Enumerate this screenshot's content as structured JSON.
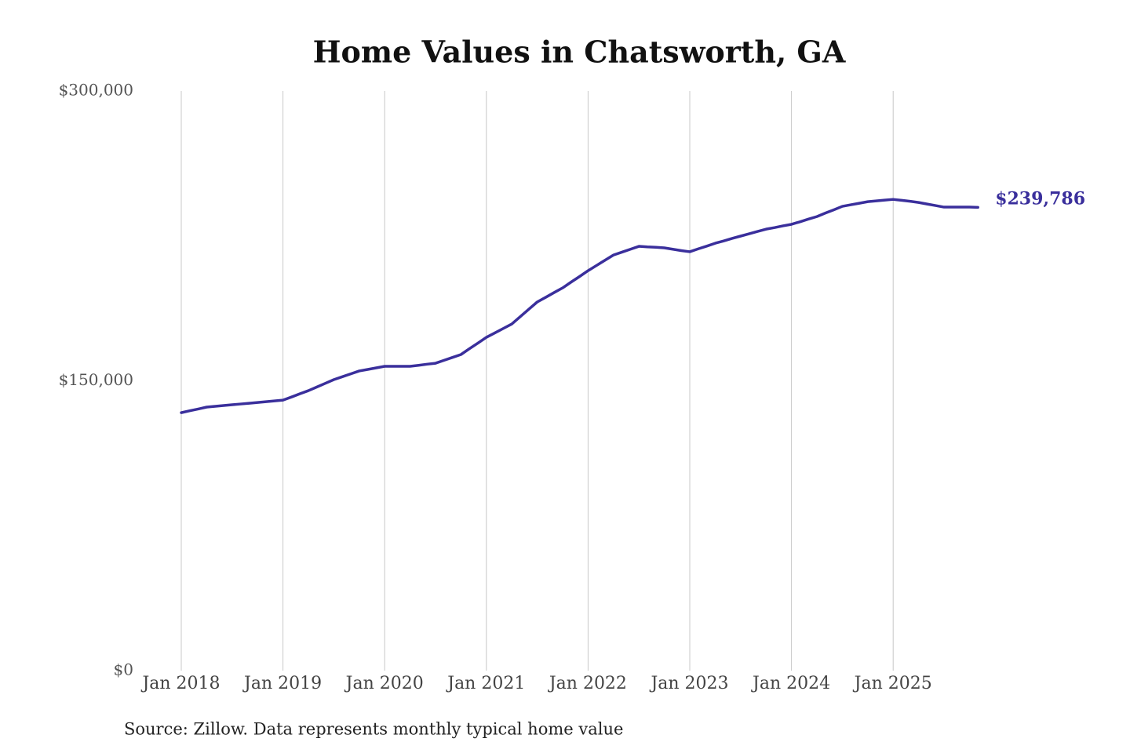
{
  "chart_data": {
    "type": "line",
    "title": "Home Values in Chatsworth, GA",
    "caption": "Source: Zillow. Data represents monthly typical home value",
    "color": "#3a2f9c",
    "xgrid": true,
    "ylim": [
      0,
      300000
    ],
    "yticks": [
      {
        "value": 0,
        "label": "$0"
      },
      {
        "value": 150000,
        "label": "$150,000"
      },
      {
        "value": 300000,
        "label": "$300,000"
      }
    ],
    "categories": [
      "Jan 2018",
      null,
      null,
      null,
      null,
      null,
      null,
      null,
      null,
      null,
      null,
      null,
      "Jan 2019",
      null,
      null,
      null,
      null,
      null,
      null,
      null,
      null,
      null,
      null,
      null,
      "Jan 2020",
      null,
      null,
      null,
      null,
      null,
      null,
      null,
      null,
      null,
      null,
      null,
      "Jan 2021",
      null,
      null,
      null,
      null,
      null,
      null,
      null,
      null,
      null,
      null,
      null,
      "Jan 2022",
      null,
      null,
      null,
      null,
      null,
      null,
      null,
      null,
      null,
      null,
      null,
      "Jan 2023",
      null,
      null,
      null,
      null,
      null,
      null,
      null,
      null,
      null,
      null,
      null,
      "Jan 2024",
      null,
      null,
      null,
      null,
      null,
      null,
      null,
      null,
      null,
      null,
      null,
      "Jan 2025",
      null,
      null,
      null,
      null,
      null,
      null,
      null,
      null,
      null,
      null
    ],
    "values": [
      133500,
      134500,
      135400,
      136400,
      136800,
      137200,
      137600,
      138000,
      138400,
      138800,
      139200,
      139600,
      140000,
      141600,
      143300,
      144900,
      146800,
      148700,
      150600,
      152100,
      153600,
      155100,
      155900,
      156700,
      157500,
      157500,
      157500,
      157500,
      158000,
      158600,
      159100,
      160600,
      162100,
      163600,
      166600,
      169500,
      172500,
      174800,
      177100,
      179400,
      183200,
      187000,
      190800,
      193200,
      195700,
      198100,
      201100,
      204000,
      207000,
      209700,
      212400,
      215100,
      216600,
      218100,
      219600,
      219300,
      219100,
      218800,
      218100,
      217400,
      216800,
      218300,
      219700,
      221200,
      222400,
      223700,
      224900,
      226100,
      227300,
      228500,
      229300,
      230200,
      231000,
      232300,
      233700,
      235000,
      236800,
      238500,
      240300,
      241100,
      241900,
      242700,
      243100,
      243500,
      243900,
      243400,
      242900,
      242300,
      241500,
      240700,
      239900,
      239900,
      239900,
      239900,
      239786
    ],
    "value_labels": [
      null,
      null,
      null,
      null,
      null,
      null,
      null,
      null,
      null,
      null,
      null,
      null,
      null,
      null,
      null,
      null,
      null,
      null,
      null,
      null,
      null,
      null,
      null,
      null,
      null,
      null,
      null,
      null,
      null,
      null,
      null,
      null,
      null,
      null,
      null,
      null,
      null,
      null,
      null,
      null,
      null,
      null,
      null,
      null,
      null,
      null,
      null,
      null,
      null,
      null,
      null,
      null,
      null,
      null,
      null,
      null,
      null,
      null,
      null,
      null,
      null,
      null,
      null,
      null,
      null,
      null,
      null,
      null,
      null,
      null,
      null,
      null,
      null,
      null,
      null,
      null,
      null,
      null,
      null,
      null,
      null,
      null,
      null,
      null,
      null,
      null,
      null,
      null,
      null,
      null,
      null,
      null,
      null,
      null,
      "$239,786"
    ]
  }
}
